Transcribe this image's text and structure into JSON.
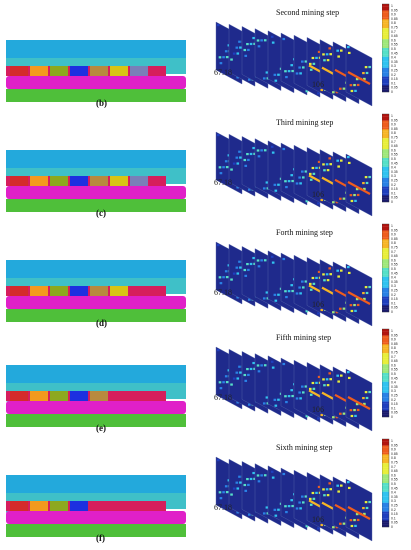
{
  "figure": {
    "panels": [
      {
        "label": "(b)",
        "title": "Second mining step",
        "z_value": "67.18",
        "x_value": "106",
        "mined_blocks": 7,
        "colorbar_ticks": [
          "1",
          "0.95",
          "0.9",
          "0.85",
          "0.8",
          "0.75",
          "0.7",
          "0.65",
          "0.6",
          "0.55",
          "0.5",
          "0.45",
          "0.4",
          "0.35",
          "0.3",
          "0.25",
          "0.2",
          "0.15",
          "0.1",
          "0.05",
          "0"
        ]
      },
      {
        "label": "(c)",
        "title": "Third mining step",
        "z_value": "67.18",
        "x_value": "106",
        "mined_blocks": 7,
        "colorbar_ticks": [
          "1",
          "0.95",
          "0.9",
          "0.85",
          "0.8",
          "0.75",
          "0.7",
          "0.65",
          "0.6",
          "0.55",
          "0.5",
          "0.45",
          "0.4",
          "0.35",
          "0.3",
          "0.25",
          "0.2",
          "0.15",
          "0.1",
          "0.05",
          "0"
        ]
      },
      {
        "label": "(d)",
        "title": "Forth mining step",
        "z_value": "67.18",
        "x_value": "106",
        "mined_blocks": 6,
        "colorbar_ticks": [
          "1",
          "0.95",
          "0.9",
          "0.85",
          "0.8",
          "0.75",
          "0.7",
          "0.65",
          "0.6",
          "0.55",
          "0.5",
          "0.45",
          "0.4",
          "0.35",
          "0.3",
          "0.25",
          "0.2",
          "0.15",
          "0.1",
          "0.05",
          "0"
        ]
      },
      {
        "label": "(e)",
        "title": "Fifth mining step",
        "z_value": "67.18",
        "x_value": "106",
        "mined_blocks": 5,
        "colorbar_ticks": [
          "1",
          "0.95",
          "0.9",
          "0.85",
          "0.8",
          "0.75",
          "0.7",
          "0.65",
          "0.6",
          "0.55",
          "0.5",
          "0.45",
          "0.4",
          "0.35",
          "0.3",
          "0.25",
          "0.2",
          "0.15",
          "0.1",
          "0.05",
          "0"
        ]
      },
      {
        "label": "(f)",
        "title": "Sixth mining step",
        "z_value": "67.18",
        "x_value": "106",
        "mined_blocks": 4,
        "colorbar_ticks": [
          "1",
          "0.95",
          "0.9",
          "0.85",
          "0.8",
          "0.75",
          "0.7",
          "0.65",
          "0.6",
          "0.55",
          "0.5",
          "0.45",
          "0.4",
          "0.35",
          "0.3",
          "0.25",
          "0.2",
          "0.15",
          "0.1",
          "0.05",
          "0"
        ]
      }
    ],
    "colors": {
      "top_stratum": "#23a9dc",
      "middle_stratum": "#3fc0c8",
      "coal_seam_base": "#d61e5c",
      "floor": "#e020c8",
      "bottom": "#4fbf3a",
      "block_colors": [
        "#d42b2b",
        "#f39a1d",
        "#8da81f",
        "#1d2fe0",
        "#b88a3e",
        "#d8c415",
        "#7a7fb8"
      ],
      "colormap": [
        "#1a1a6e",
        "#1f3fbf",
        "#2a82e6",
        "#31c3f0",
        "#56e0c8",
        "#9fe87a",
        "#e8ef3a",
        "#f7b525",
        "#ef5d1e",
        "#b3140f"
      ]
    }
  }
}
